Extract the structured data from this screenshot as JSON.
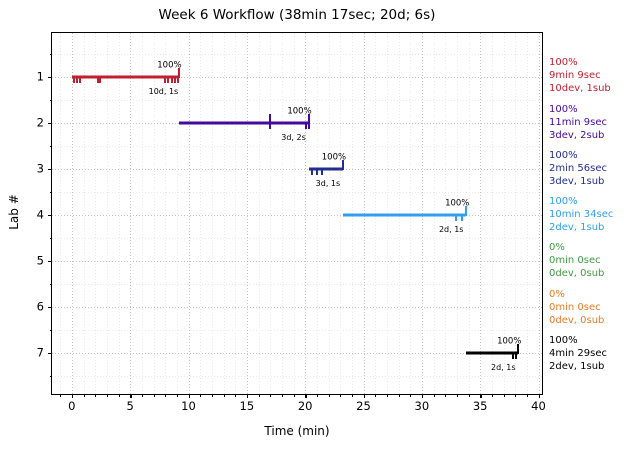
{
  "chart_data": {
    "type": "line",
    "title": "Week 6 Workflow (38min 17sec; 20d; 6s)",
    "xlabel": "Time (min)",
    "ylabel": "Lab #",
    "xlim": [
      -1.7,
      40.3
    ],
    "ylim": [
      0.05,
      7.9
    ],
    "y_inverted": true,
    "x_major_ticks": [
      0,
      5,
      10,
      15,
      20,
      25,
      30,
      35,
      40
    ],
    "x_minor_step": 1,
    "y_major_ticks": [
      1,
      2,
      3,
      4,
      5,
      6,
      7
    ],
    "y_minor_step": 0.5,
    "grid": "dotted, major and minor, both axes",
    "legend_position": "right margin, per-row stat blocks",
    "series": [
      {
        "lab": 1,
        "color": "#c01f2f",
        "segment": {
          "start": 0,
          "end": 9.15
        },
        "dev_marks": [
          0.2,
          0.45,
          0.7,
          2.2,
          2.45,
          7.95,
          8.25,
          8.55,
          8.85,
          9.1
        ],
        "sub_marks": [
          9.15
        ],
        "pct_label": "100%",
        "tag_label": "10d, 1s",
        "side": {
          "pct": "100%",
          "time": "9min 9sec",
          "counts": "10dev, 1sub"
        }
      },
      {
        "lab": 2,
        "color": "#45089e",
        "segment": {
          "start": 9.15,
          "end": 20.3
        },
        "dev_marks": [
          17.0,
          20.05,
          20.3
        ],
        "sub_marks": [
          17.0,
          20.3
        ],
        "pct_label": "100%",
        "tag_label": "3d, 2s",
        "side": {
          "pct": "100%",
          "time": "11min 9sec",
          "counts": "3dev, 2sub"
        }
      },
      {
        "lab": 3,
        "color": "#212e8f",
        "segment": {
          "start": 20.3,
          "end": 23.25
        },
        "dev_marks": [
          20.55,
          21.05,
          21.45
        ],
        "sub_marks": [
          23.25
        ],
        "pct_label": "100%",
        "tag_label": "3d, 1s",
        "side": {
          "pct": "100%",
          "time": "2min 56sec",
          "counts": "3dev, 1sub"
        }
      },
      {
        "lab": 4,
        "color": "#2f9ff4",
        "segment": {
          "start": 23.25,
          "end": 33.82
        },
        "dev_marks": [
          32.9,
          33.4
        ],
        "sub_marks": [
          33.82
        ],
        "pct_label": "100%",
        "tag_label": "2d, 1s",
        "side": {
          "pct": "100%",
          "time": "10min 34sec",
          "counts": "2dev, 1sub"
        }
      },
      {
        "lab": 5,
        "color": "#3d9c42",
        "segment": null,
        "dev_marks": [],
        "sub_marks": [],
        "pct_label": "",
        "tag_label": "",
        "side": {
          "pct": "0%",
          "time": "0min 0sec",
          "counts": "0dev, 0sub"
        }
      },
      {
        "lab": 6,
        "color": "#e97a25",
        "segment": null,
        "dev_marks": [],
        "sub_marks": [],
        "pct_label": "",
        "tag_label": "",
        "side": {
          "pct": "0%",
          "time": "0min 0sec",
          "counts": "0dev, 0sub"
        }
      },
      {
        "lab": 7,
        "color": "#000000",
        "segment": {
          "start": 33.82,
          "end": 38.28
        },
        "dev_marks": [
          37.85,
          38.1
        ],
        "sub_marks": [
          38.28
        ],
        "pct_label": "100%",
        "tag_label": "2d, 1s",
        "side": {
          "pct": "100%",
          "time": "4min 29sec",
          "counts": "2dev, 1sub"
        }
      }
    ]
  }
}
